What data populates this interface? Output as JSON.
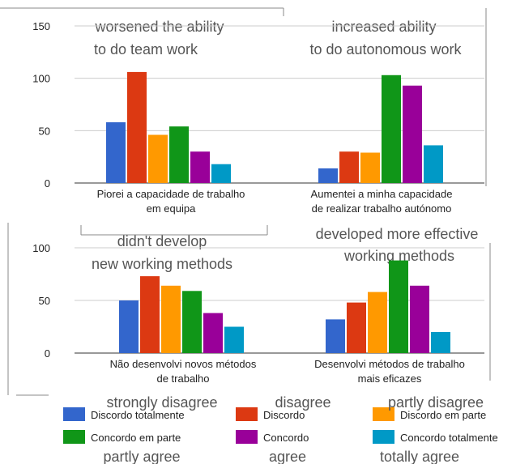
{
  "colors": {
    "discordo_totalmente": "#3366cc",
    "discordo": "#dc3912",
    "discordo_em_parte": "#ff9900",
    "concordo_em_parte": "#109618",
    "concordo": "#990099",
    "concordo_totalmente": "#0099c6"
  },
  "annotations": {
    "top_left": [
      "worsened the ability",
      "to do team work"
    ],
    "top_right": [
      "increased ability",
      "to do autonomous work"
    ],
    "bottom_left": [
      "didn't develop",
      "new working methods"
    ],
    "bottom_right": [
      "developed more effective",
      "working methods"
    ],
    "legend_row1": [
      "strongly disagree",
      "disagree",
      "partly disagree"
    ],
    "legend_row2": [
      "partly agree",
      "agree",
      "totally agree"
    ]
  },
  "chart_data": [
    {
      "type": "bar",
      "ylim": [
        0,
        150
      ],
      "yticks": [
        "150",
        "100",
        "50",
        "0"
      ],
      "categories": [
        "Piorei a capacidade de trabalho em equipa",
        "Aumentei a minha capacidade de realizar trabalho autónomo"
      ],
      "category_lines": [
        [
          "Piorei a capacidade de trabalho",
          "em equipa"
        ],
        [
          "Aumentei a minha capacidade",
          "de realizar trabalho autónomo"
        ]
      ],
      "series": [
        {
          "name": "Discordo totalmente",
          "values": [
            58,
            14
          ]
        },
        {
          "name": "Discordo",
          "values": [
            106,
            30
          ]
        },
        {
          "name": "Discordo em parte",
          "values": [
            46,
            29
          ]
        },
        {
          "name": "Concordo em parte",
          "values": [
            54,
            103
          ]
        },
        {
          "name": "Concordo",
          "values": [
            30,
            93
          ]
        },
        {
          "name": "Concordo totalmente",
          "values": [
            18,
            36
          ]
        }
      ]
    },
    {
      "type": "bar",
      "ylim": [
        0,
        100
      ],
      "yticks": [
        "100",
        "50",
        "0"
      ],
      "categories": [
        "Não desenvolvi novos métodos de trabalho",
        "Desenvolvi métodos de trabalho mais eficazes"
      ],
      "category_lines": [
        [
          "Não desenvolvi novos métodos",
          "de trabalho"
        ],
        [
          "Desenvolvi métodos de trabalho",
          "mais eficazes"
        ]
      ],
      "series": [
        {
          "name": "Discordo totalmente",
          "values": [
            50,
            32
          ]
        },
        {
          "name": "Discordo",
          "values": [
            73,
            48
          ]
        },
        {
          "name": "Discordo em parte",
          "values": [
            64,
            58
          ]
        },
        {
          "name": "Concordo em parte",
          "values": [
            59,
            88
          ]
        },
        {
          "name": "Concordo",
          "values": [
            38,
            64
          ]
        },
        {
          "name": "Concordo totalmente",
          "values": [
            25,
            20
          ]
        }
      ]
    }
  ],
  "legend": [
    {
      "label": "Discordo totalmente",
      "color": "#3366cc"
    },
    {
      "label": "Discordo",
      "color": "#dc3912"
    },
    {
      "label": "Discordo em parte",
      "color": "#ff9900"
    },
    {
      "label": "Concordo em parte",
      "color": "#109618"
    },
    {
      "label": "Concordo",
      "color": "#990099"
    },
    {
      "label": "Concordo totalmente",
      "color": "#0099c6"
    }
  ]
}
